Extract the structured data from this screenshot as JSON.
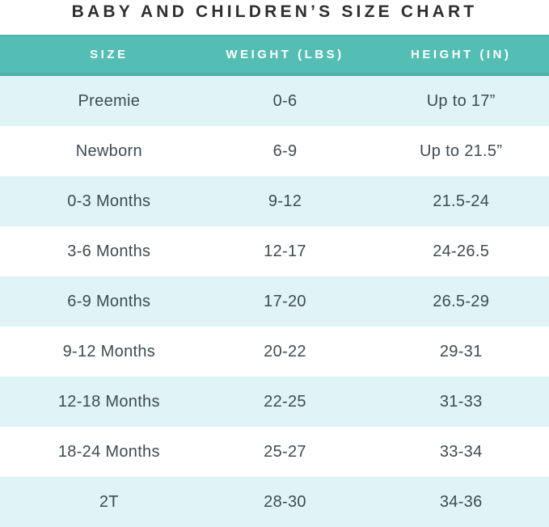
{
  "title": "BABY AND CHILDREN’S SIZE CHART",
  "chart_data": {
    "type": "table",
    "title": "BABY AND CHILDREN’S SIZE CHART",
    "columns": [
      "SIZE",
      "WEIGHT (LBS)",
      "HEIGHT (IN)"
    ],
    "rows": [
      [
        "Preemie",
        "0-6",
        "Up to 17”"
      ],
      [
        "Newborn",
        "6-9",
        "Up to 21.5”"
      ],
      [
        "0-3 Months",
        "9-12",
        "21.5-24"
      ],
      [
        "3-6 Months",
        "12-17",
        "24-26.5"
      ],
      [
        "6-9 Months",
        "17-20",
        "26.5-29"
      ],
      [
        "9-12 Months",
        "20-22",
        "29-31"
      ],
      [
        "12-18 Months",
        "22-25",
        "31-33"
      ],
      [
        "18-24 Months",
        "25-27",
        "33-34"
      ],
      [
        "2T",
        "28-30",
        "34-36"
      ]
    ],
    "layout": {
      "striped_rows": true,
      "stripe_color_odd": "#e0f4f8",
      "stripe_color_even": "#ffffff",
      "header_position": "top"
    }
  },
  "colors": {
    "header_bg": "#55beb4",
    "header_edge": "#4fb0a7",
    "row_alt_bg": "#e0f4f8",
    "row_bg": "#ffffff",
    "header_text": "#ffffff",
    "cell_text": "#3f4b52",
    "title_text": "#2f2f2f"
  }
}
